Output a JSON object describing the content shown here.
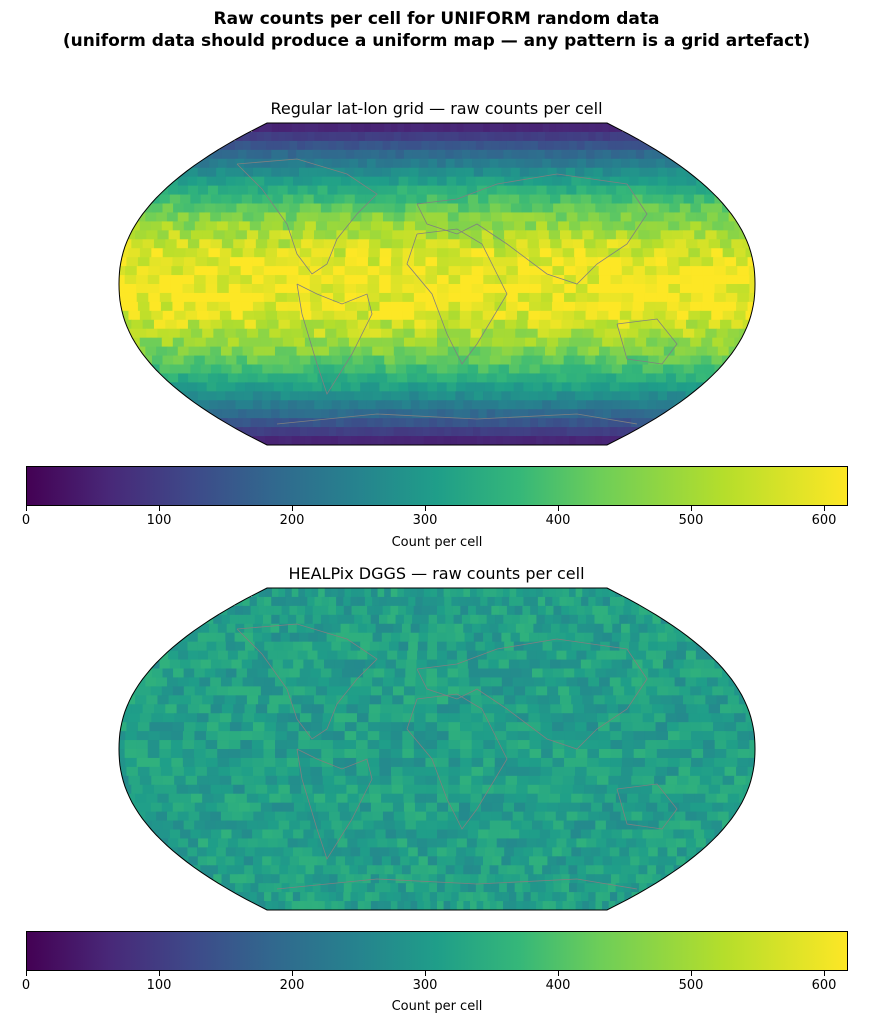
{
  "figure": {
    "title_line1": "Raw counts per cell for UNIFORM random data",
    "title_line2": "(uniform data should produce a uniform map — any pattern is a grid artefact)"
  },
  "maps": [
    {
      "title": "Regular lat-lon grid — raw counts per cell",
      "pattern": "latitude-banded",
      "description_values": {
        "equator_count": 610,
        "pole_count": 40
      },
      "colorbar": {
        "label": "Count per cell",
        "min": 0,
        "max": 618,
        "ticks": [
          0,
          100,
          200,
          300,
          400,
          500,
          600
        ]
      }
    },
    {
      "title": "HEALPix DGGS — raw counts per cell",
      "pattern": "uniform",
      "description_values": {
        "mean_count": 345
      },
      "colorbar": {
        "label": "Count per cell",
        "min": 0,
        "max": 618,
        "ticks": [
          0,
          100,
          200,
          300,
          400,
          500,
          600
        ]
      }
    }
  ],
  "colormap": "viridis",
  "colors": {
    "outline": "#000000",
    "coastline": "#808080"
  }
}
